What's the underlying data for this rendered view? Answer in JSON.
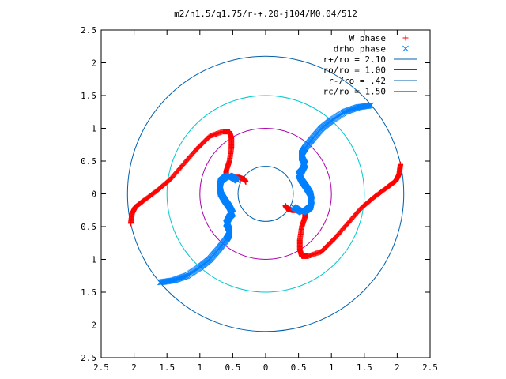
{
  "chart_data": {
    "type": "scatter",
    "title": "m2/n1.5/q1.75/r-+.20-j104/M0.04/512",
    "xlim": [
      -2.5,
      2.5
    ],
    "ylim": [
      -2.5,
      2.5
    ],
    "xticks": [
      -2.5,
      -2,
      -1.5,
      -1,
      -0.5,
      0,
      0.5,
      1,
      1.5,
      2,
      2.5
    ],
    "yticks": [
      -2.5,
      -2,
      -1.5,
      -1,
      -0.5,
      0,
      0.5,
      1,
      1.5,
      2,
      2.5
    ],
    "xtick_labels": [
      "2.5",
      "2",
      "1.5",
      "1",
      "0.5",
      "0",
      "0.5",
      "1",
      "1.5",
      "2",
      "2.5"
    ],
    "ytick_labels": [
      "2.5",
      "2",
      "1.5",
      "1",
      "0.5",
      "0",
      "0.5",
      "1",
      "1.5",
      "2",
      "2.5"
    ],
    "grid": false,
    "legend_position": "top-right",
    "circles": [
      {
        "name": "r+/ro = 2.10",
        "radius": 2.1,
        "color": "#0060ad"
      },
      {
        "name": "ro/ro = 1.00",
        "radius": 1.0,
        "color": "#aa00aa"
      },
      {
        "name": "r-/ro = .42",
        "radius": 0.42,
        "color": "#0060ad"
      },
      {
        "name": "rc/ro = 1.50",
        "radius": 1.5,
        "color": "#00c8d0"
      }
    ],
    "series": [
      {
        "name": "W phase",
        "marker": "+",
        "color": "#ff0000",
        "arms": [
          {
            "x": [
              -2.05,
              -2.03,
              -1.98,
              -1.85,
              -1.65,
              -1.45,
              -1.25,
              -1.05,
              -0.85,
              -0.65,
              -0.55,
              -0.52,
              -0.52,
              -0.55,
              -0.6,
              -0.6,
              -0.52,
              -0.4,
              -0.32,
              -0.3
            ],
            "y": [
              -0.45,
              -0.3,
              -0.2,
              -0.1,
              0.05,
              0.22,
              0.45,
              0.68,
              0.88,
              0.95,
              0.95,
              0.85,
              0.7,
              0.5,
              0.35,
              0.28,
              0.25,
              0.25,
              0.22,
              0.18
            ]
          },
          {
            "x": [
              2.05,
              2.03,
              1.98,
              1.85,
              1.65,
              1.45,
              1.25,
              1.05,
              0.85,
              0.65,
              0.55,
              0.52,
              0.52,
              0.55,
              0.6,
              0.6,
              0.52,
              0.4,
              0.32,
              0.3
            ],
            "y": [
              0.45,
              0.3,
              0.2,
              0.1,
              -0.05,
              -0.22,
              -0.45,
              -0.68,
              -0.88,
              -0.95,
              -0.95,
              -0.85,
              -0.7,
              -0.5,
              -0.35,
              -0.28,
              -0.25,
              -0.25,
              -0.22,
              -0.18
            ]
          }
        ]
      },
      {
        "name": "drho phase",
        "marker": "x",
        "color": "#0080ff",
        "arms": [
          {
            "x": [
              1.6,
              1.4,
              1.2,
              1.0,
              0.85,
              0.72,
              0.6,
              0.55,
              0.55,
              0.6,
              0.55,
              0.5,
              0.55,
              0.62,
              0.68,
              0.7,
              0.68,
              0.62,
              0.55,
              0.42
            ],
            "y": [
              1.35,
              1.32,
              1.25,
              1.12,
              1.0,
              0.85,
              0.7,
              0.62,
              0.55,
              0.45,
              0.35,
              0.3,
              0.2,
              0.1,
              0.0,
              -0.1,
              -0.2,
              -0.25,
              -0.28,
              -0.2
            ]
          },
          {
            "x": [
              -1.6,
              -1.4,
              -1.2,
              -1.0,
              -0.85,
              -0.72,
              -0.6,
              -0.55,
              -0.55,
              -0.6,
              -0.55,
              -0.5,
              -0.55,
              -0.62,
              -0.68,
              -0.7,
              -0.68,
              -0.62,
              -0.55,
              -0.42
            ],
            "y": [
              -1.35,
              -1.32,
              -1.25,
              -1.12,
              -1.0,
              -0.85,
              -0.7,
              -0.62,
              -0.55,
              -0.45,
              -0.35,
              -0.3,
              -0.2,
              -0.1,
              0.0,
              0.1,
              0.2,
              0.25,
              0.28,
              0.2
            ]
          }
        ]
      }
    ]
  }
}
